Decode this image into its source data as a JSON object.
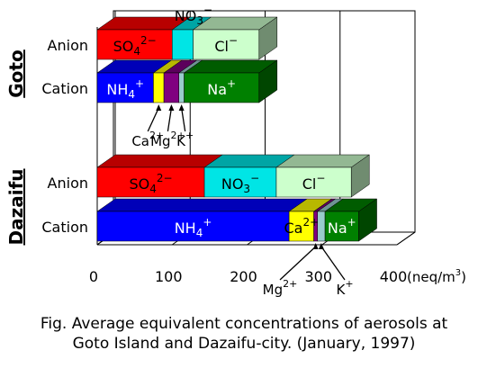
{
  "chart_data": {
    "type": "bar",
    "orientation": "horizontal",
    "stacked": true,
    "style": "3d",
    "x_unit": "(neq/m3)",
    "xlim": [
      0,
      400
    ],
    "x_ticks": [
      0,
      100,
      200,
      300,
      400
    ],
    "grid": true,
    "groups": [
      {
        "name": "Goto",
        "rows": [
          {
            "name": "Anion",
            "segments": [
              {
                "ion": "SO4",
                "charge": "2−",
                "value": 100,
                "color": "#ff0000",
                "label_inside": true
              },
              {
                "ion": "NO3",
                "charge": "−",
                "value": 28,
                "color": "#00e5e5",
                "label_inside": false
              },
              {
                "ion": "Cl",
                "charge": "−",
                "value": 88,
                "color": "#ccffcc",
                "label_inside": true
              }
            ]
          },
          {
            "name": "Cation",
            "segments": [
              {
                "ion": "NH4",
                "charge": "+",
                "value": 75,
                "color": "#0000ff",
                "label_inside": true
              },
              {
                "ion": "Ca",
                "charge": "2+",
                "value": 14,
                "color": "#ffff00",
                "label_inside": false
              },
              {
                "ion": "Mg",
                "charge": "2+",
                "value": 20,
                "color": "#800080",
                "label_inside": false
              },
              {
                "ion": "K",
                "charge": "+",
                "value": 7,
                "color": "#99cccc",
                "label_inside": false
              },
              {
                "ion": "Na",
                "charge": "+",
                "value": 100,
                "color": "#008000",
                "label_inside": true
              }
            ]
          }
        ]
      },
      {
        "name": "Dazaifu",
        "rows": [
          {
            "name": "Anion",
            "segments": [
              {
                "ion": "SO4",
                "charge": "2−",
                "value": 143,
                "color": "#ff0000",
                "label_inside": true
              },
              {
                "ion": "NO3",
                "charge": "−",
                "value": 96,
                "color": "#00e5e5",
                "label_inside": true
              },
              {
                "ion": "Cl",
                "charge": "−",
                "value": 100,
                "color": "#ccffcc",
                "label_inside": true
              }
            ]
          },
          {
            "name": "Cation",
            "segments": [
              {
                "ion": "NH4",
                "charge": "+",
                "value": 256,
                "color": "#0000ff",
                "label_inside": true
              },
              {
                "ion": "Ca",
                "charge": "2+",
                "value": 33,
                "color": "#ffff00",
                "label_inside": true
              },
              {
                "ion": "Mg",
                "charge": "2+",
                "value": 5,
                "color": "#800080",
                "label_inside": false
              },
              {
                "ion": "K",
                "charge": "+",
                "value": 10,
                "color": "#99cccc",
                "label_inside": false
              },
              {
                "ion": "Na",
                "charge": "+",
                "value": 45,
                "color": "#008000",
                "label_inside": true
              }
            ]
          }
        ]
      }
    ],
    "callouts": [
      {
        "text": "NO3",
        "sup": "−",
        "group": 0,
        "row": 0,
        "seg": 1,
        "place": "above"
      },
      {
        "text": "Ca",
        "sup": "2+",
        "group": 0,
        "row": 1,
        "seg": 1,
        "place": "below"
      },
      {
        "text": "Mg",
        "sup": "2+",
        "group": 0,
        "row": 1,
        "seg": 2,
        "place": "below"
      },
      {
        "text": "K",
        "sup": "+",
        "group": 0,
        "row": 1,
        "seg": 3,
        "place": "below"
      },
      {
        "text": "Mg",
        "sup": "2+",
        "group": 1,
        "row": 1,
        "seg": 2,
        "place": "below"
      },
      {
        "text": "K",
        "sup": "+",
        "group": 1,
        "row": 1,
        "seg": 3,
        "place": "below"
      }
    ]
  },
  "caption": {
    "line1": "Fig.  Average equivalent concentrations of aerosols at",
    "line2": "Goto Island and Dazaifu-city. (January, 1997)"
  }
}
